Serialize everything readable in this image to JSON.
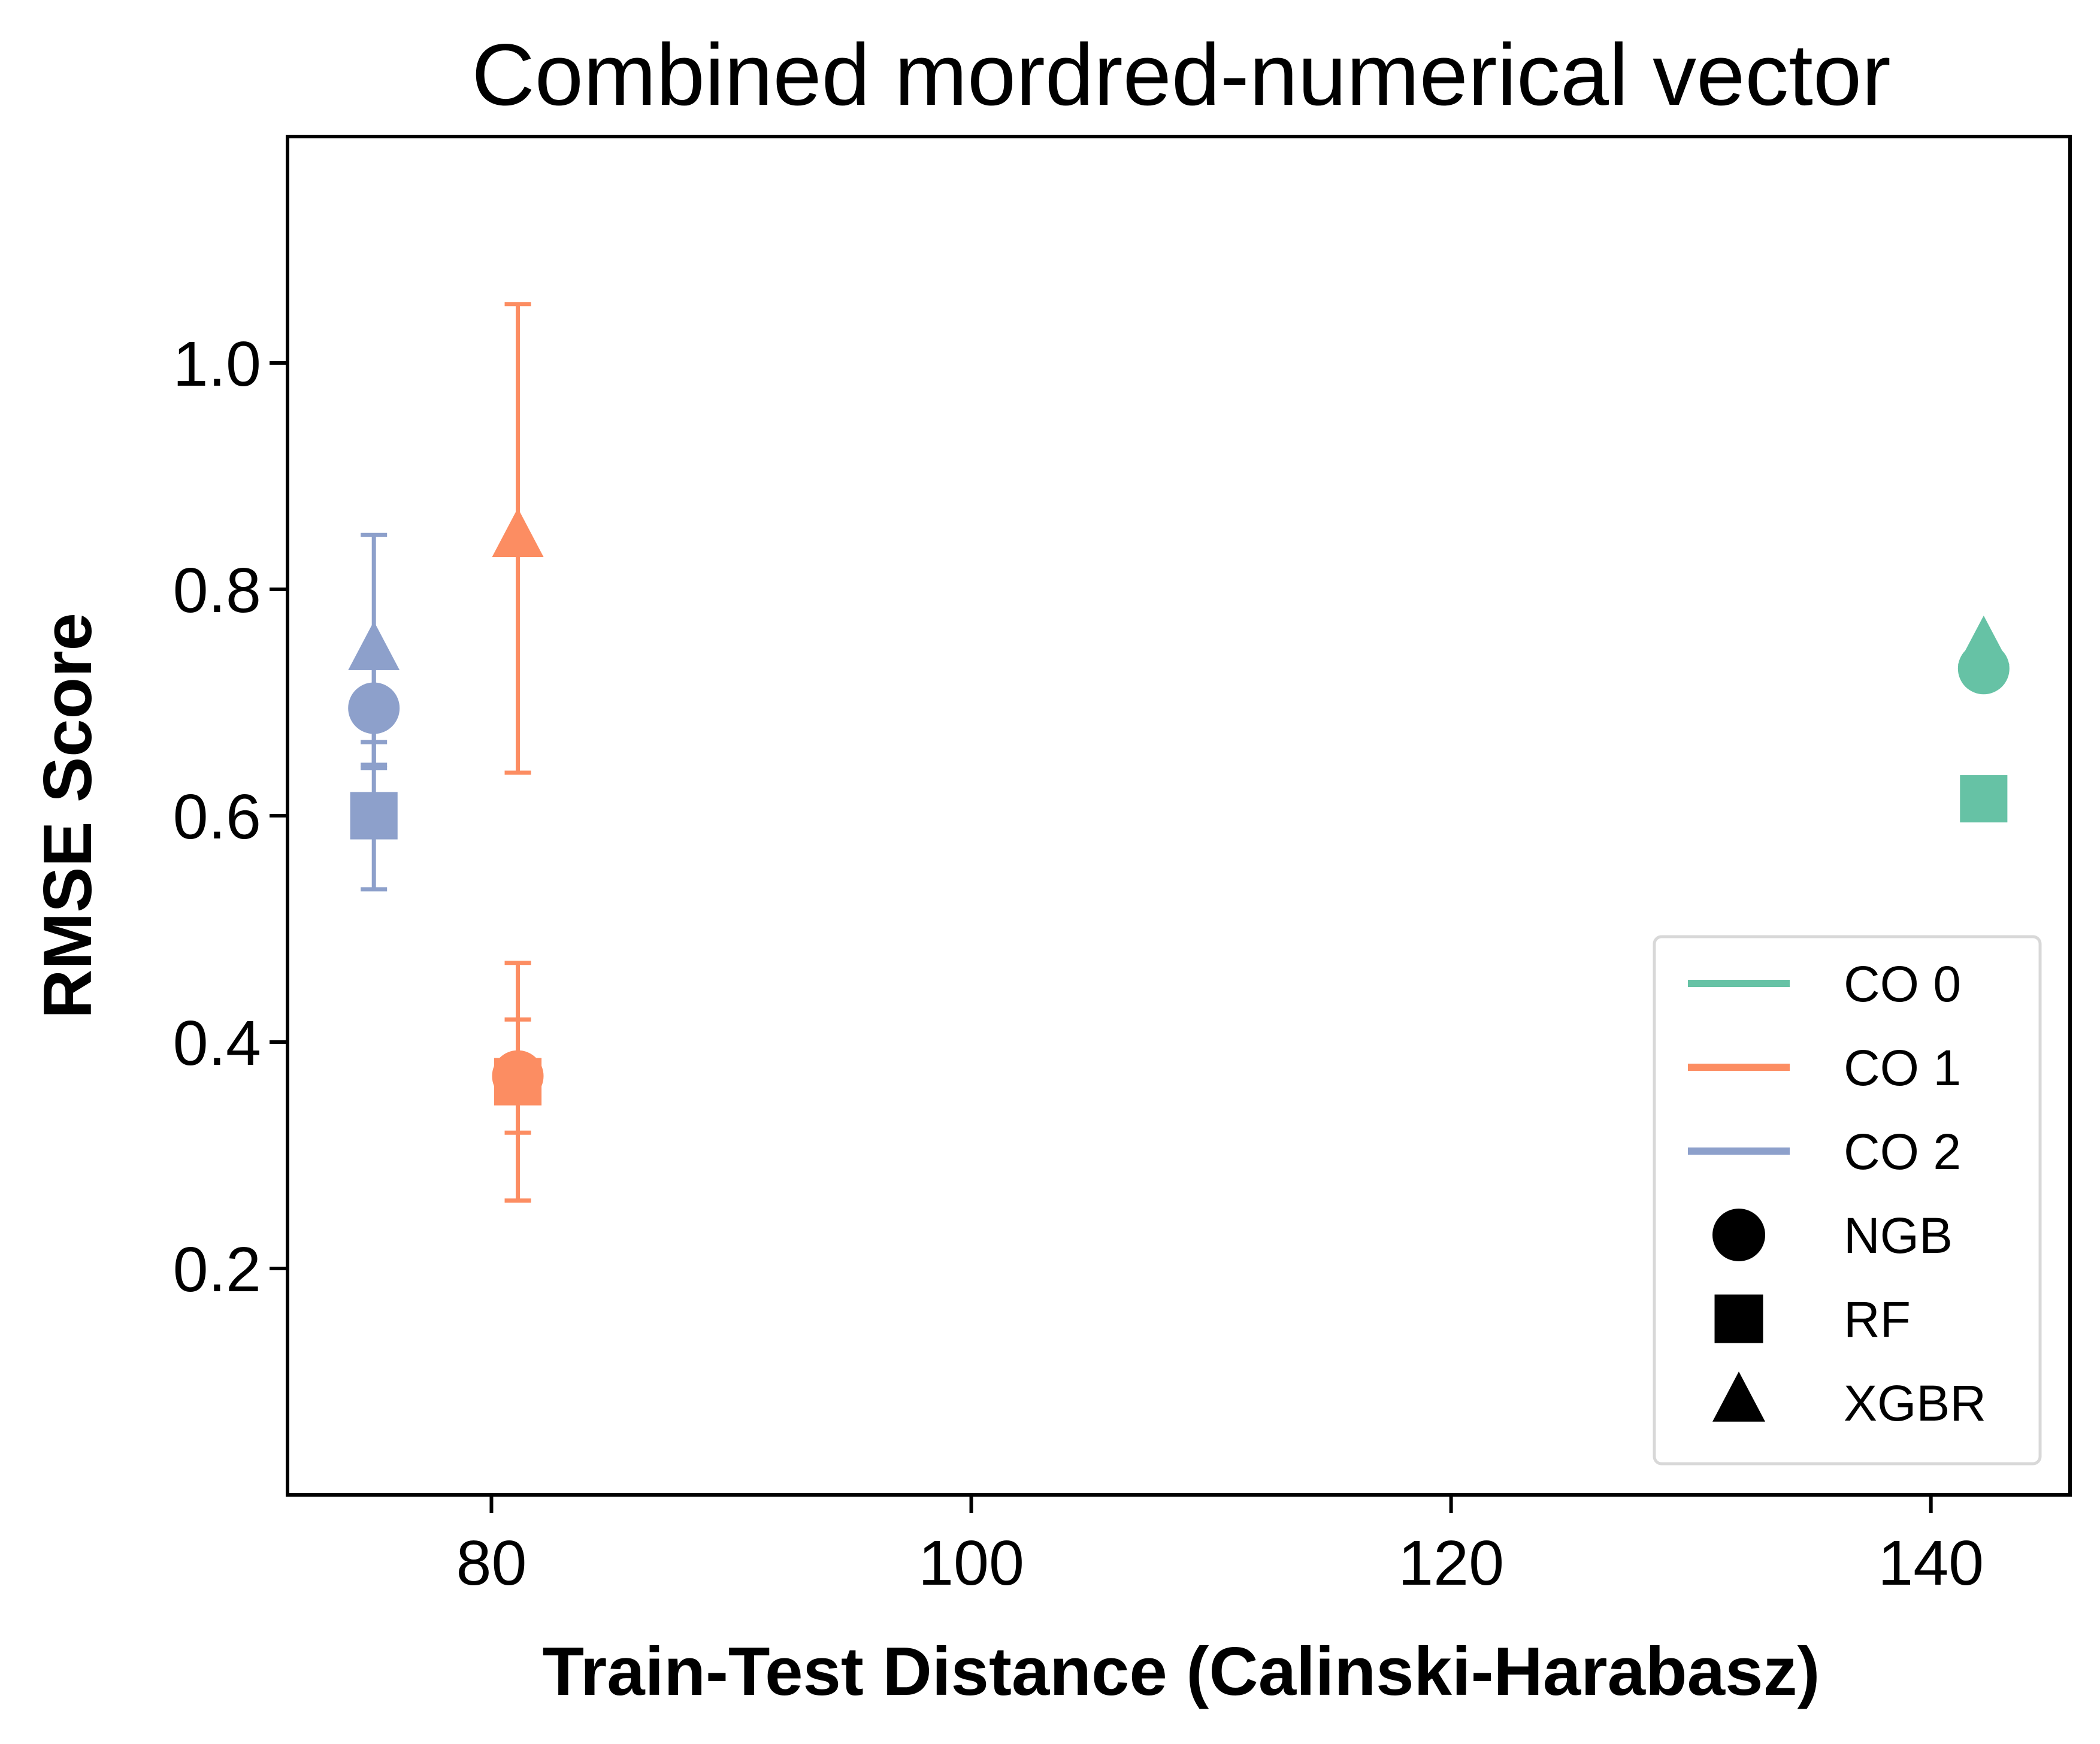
{
  "chart_data": {
    "type": "scatter",
    "title": "Combined mordred-numerical vector",
    "xlabel": "Train-Test Distance (Calinski-Harabasz)",
    "ylabel": "RMSE Score",
    "xlim": [
      71.5,
      145.8
    ],
    "ylim": [
      0.0,
      1.2
    ],
    "x_ticks": [
      80,
      100,
      120,
      140
    ],
    "y_ticks": [
      0.2,
      0.4,
      0.6,
      0.8,
      1.0
    ],
    "x_tick_labels": [
      "80",
      "100",
      "120",
      "140"
    ],
    "y_tick_labels": [
      "0.2",
      "0.4",
      "0.6",
      "0.8",
      "1.0"
    ],
    "grid": false,
    "legend_position": "lower right",
    "series": [
      {
        "name": "CO 0",
        "color": "#66c2a5",
        "points": [
          {
            "model": "NGB",
            "x": 142.2,
            "y": 0.73,
            "err": 0.0
          },
          {
            "model": "RF",
            "x": 142.2,
            "y": 0.615,
            "err": 0.0
          },
          {
            "model": "XGBR",
            "x": 142.2,
            "y": 0.75,
            "err": 0.0
          }
        ]
      },
      {
        "name": "CO 1",
        "color": "#fc8d62",
        "points": [
          {
            "model": "NGB",
            "x": 81.1,
            "y": 0.37,
            "err": 0.05
          },
          {
            "model": "RF",
            "x": 81.1,
            "y": 0.365,
            "err": 0.105
          },
          {
            "model": "XGBR",
            "x": 81.1,
            "y": 0.845,
            "err": 0.207
          }
        ]
      },
      {
        "name": "CO 2",
        "color": "#8da0cb",
        "points": [
          {
            "model": "NGB",
            "x": 75.1,
            "y": 0.695,
            "err": 0.05
          },
          {
            "model": "RF",
            "x": 75.1,
            "y": 0.6,
            "err": 0.065
          },
          {
            "model": "XGBR",
            "x": 75.1,
            "y": 0.745,
            "err": 0.103
          }
        ]
      }
    ],
    "legend": {
      "entries": [
        {
          "label": "CO 0",
          "kind": "line",
          "color": "#66c2a5"
        },
        {
          "label": "CO 1",
          "kind": "line",
          "color": "#fc8d62"
        },
        {
          "label": "CO 2",
          "kind": "line",
          "color": "#8da0cb"
        },
        {
          "label": "NGB",
          "kind": "circle",
          "color": "#000000"
        },
        {
          "label": "RF",
          "kind": "square",
          "color": "#000000"
        },
        {
          "label": "XGBR",
          "kind": "triangle",
          "color": "#000000"
        }
      ]
    }
  }
}
